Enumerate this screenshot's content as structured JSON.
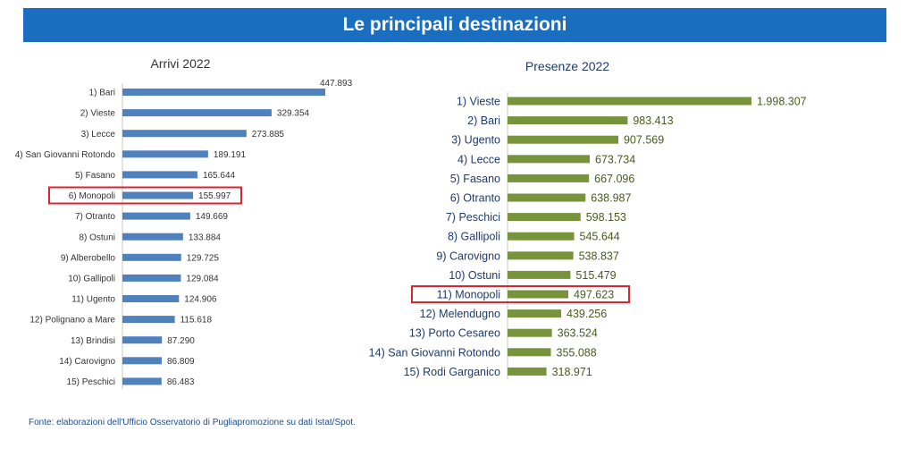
{
  "header": {
    "title": "Le principali destinazioni",
    "color": "#1a6dbf"
  },
  "source": "Fonte: elaborazioni dell'Ufficio Osservatorio di Pugliapromozione su dati Istat/Spot.",
  "highlight_color": "#d8262e",
  "chart_data": [
    {
      "type": "bar",
      "orientation": "horizontal",
      "title": "Arrivi 2022",
      "color": "#4f81bd",
      "highlight_index": 5,
      "categories": [
        "1) Bari",
        "2) Vieste",
        "3) Lecce",
        "4) San Giovanni Rotondo",
        "5) Fasano",
        "6) Monopoli",
        "7) Otranto",
        "8) Ostuni",
        "9) Alberobello",
        "10) Gallipoli",
        "11) Ugento",
        "12) Polignano a Mare",
        "13) Brindisi",
        "14) Carovigno",
        "15) Peschici"
      ],
      "values": [
        447893,
        329354,
        273885,
        189191,
        165644,
        155997,
        149669,
        133884,
        129725,
        129084,
        124906,
        115618,
        87290,
        86809,
        86483
      ],
      "labels": [
        "447.893",
        "329.354",
        "273.885",
        "189.191",
        "165.644",
        "155.997",
        "149.669",
        "133.884",
        "129.725",
        "129.084",
        "124.906",
        "115.618",
        "87.290",
        "86.809",
        "86.483"
      ]
    },
    {
      "type": "bar",
      "orientation": "horizontal",
      "title": "Presenze 2022",
      "color": "#77933c",
      "highlight_index": 10,
      "categories": [
        "1) Vieste",
        "2) Bari",
        "3) Ugento",
        "4) Lecce",
        "5) Fasano",
        "6) Otranto",
        "7) Peschici",
        "8) Gallipoli",
        "9) Carovigno",
        "10) Ostuni",
        "11) Monopoli",
        "12) Melendugno",
        "13) Porto Cesareo",
        "14) San Giovanni Rotondo",
        "15) Rodi Garganico"
      ],
      "values": [
        1998307,
        983413,
        907569,
        673734,
        667096,
        638987,
        598153,
        545644,
        538837,
        515479,
        497623,
        439256,
        363524,
        355088,
        318971
      ],
      "labels": [
        "1.998.307",
        "983.413",
        "907.569",
        "673.734",
        "667.096",
        "638.987",
        "598.153",
        "545.644",
        "538.837",
        "515.479",
        "497.623",
        "439.256",
        "363.524",
        "355.088",
        "318.971"
      ]
    }
  ]
}
